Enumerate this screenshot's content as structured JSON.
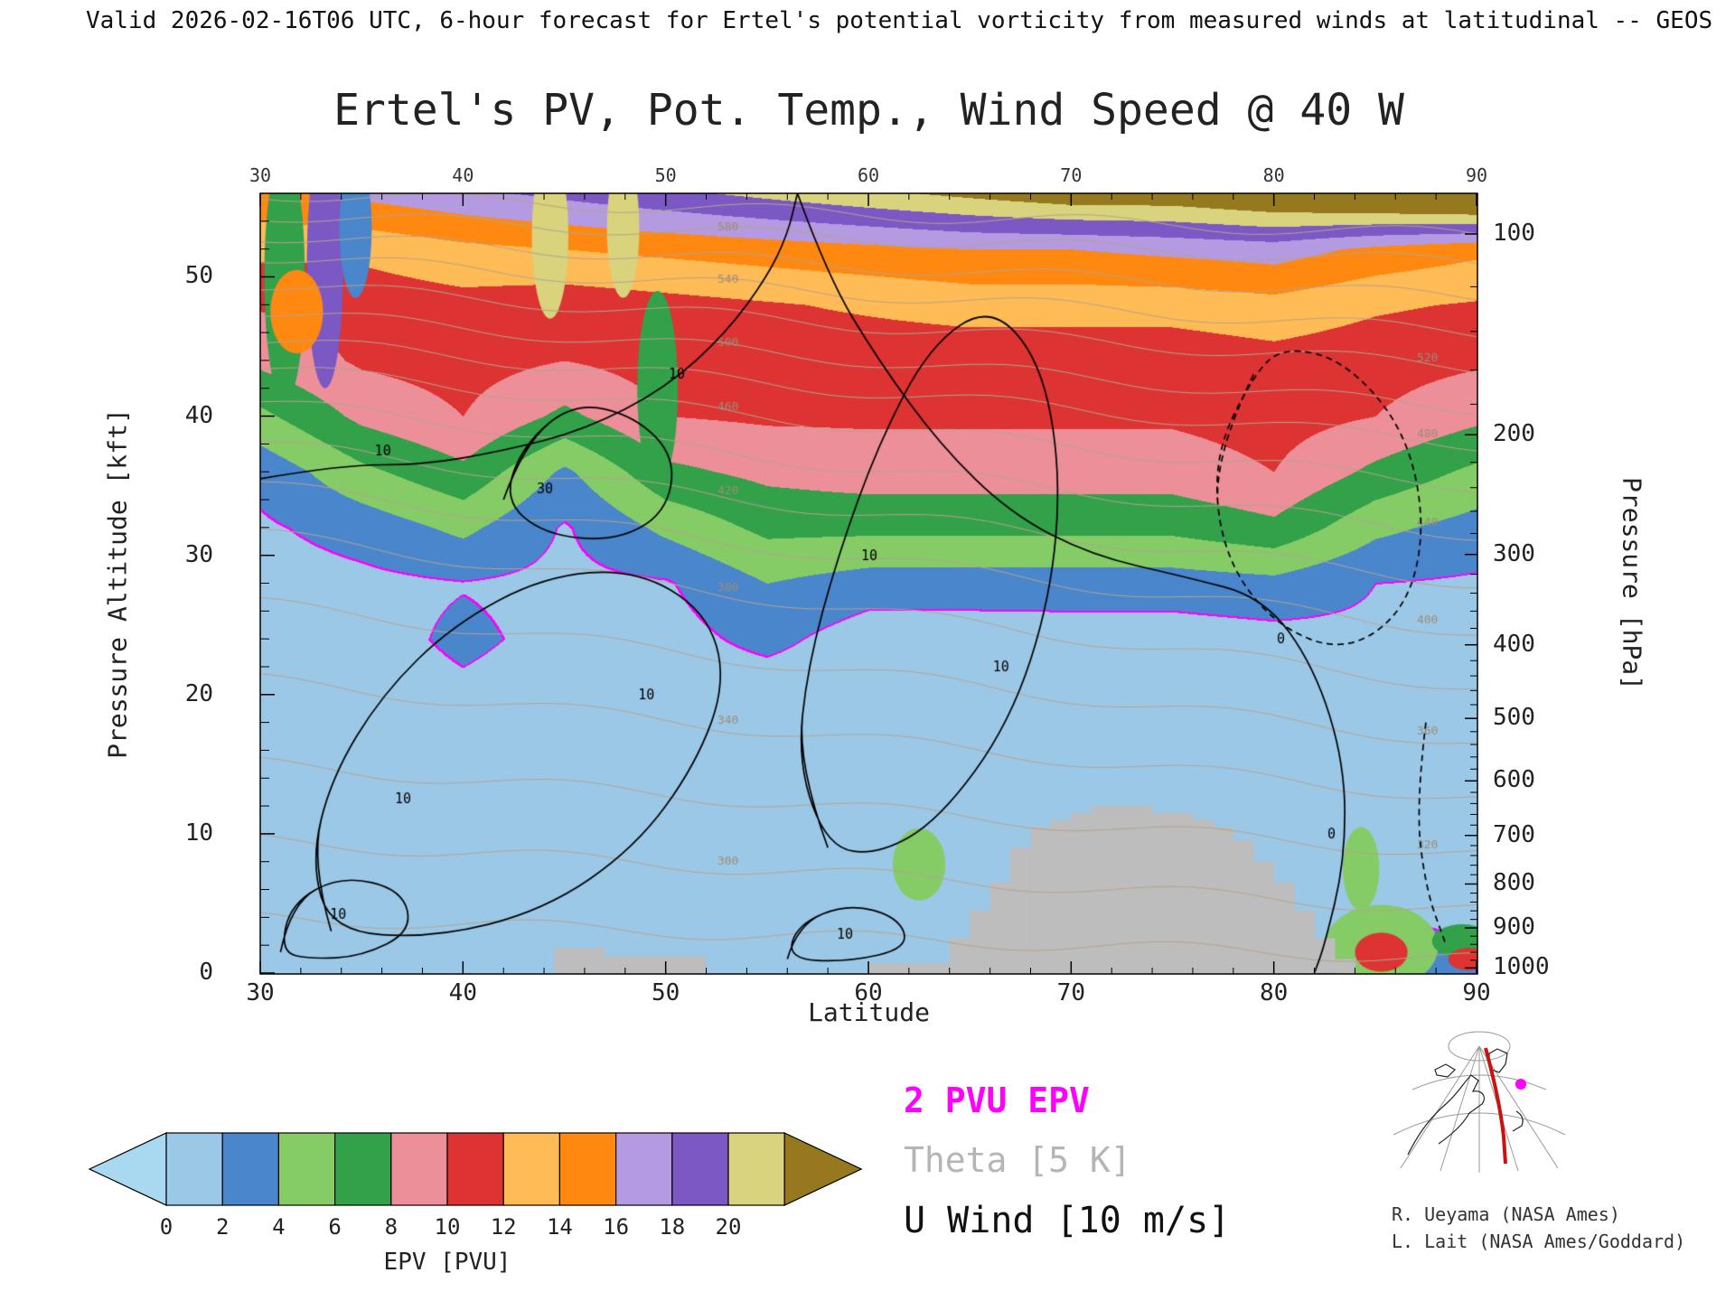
{
  "header": {
    "valid_line": "Valid 2026-02-16T06 UTC, 6-hour forecast for Ertel's potential vorticity from measured winds at latitudinal -- GEOS"
  },
  "title": "Ertel's PV, Pot. Temp., Wind Speed @ 40 W",
  "axes": {
    "x": {
      "label": "Latitude",
      "min": 30,
      "max": 90,
      "major_ticks": [
        30,
        40,
        50,
        60,
        70,
        80,
        90
      ],
      "minor_step": 2
    },
    "y_left": {
      "label": "Pressure Altitude [kft]",
      "min": 0,
      "max": 56,
      "major_ticks": [
        0,
        10,
        20,
        30,
        40,
        50
      ],
      "minor_step": 2
    },
    "y_right": {
      "label": "Pressure [hPa]",
      "ticks": [
        100,
        200,
        300,
        400,
        500,
        600,
        700,
        800,
        900,
        1000
      ],
      "minor_step": 20
    }
  },
  "legend": {
    "epv": "2 PVU EPV",
    "epv_color": "#ff00ff",
    "theta": "Theta [5 K]",
    "theta_color": "#b5b5b5",
    "wind": "U Wind [10 m/s]",
    "wind_color": "#111111"
  },
  "colorbar": {
    "label": "EPV [PVU]",
    "tick_labels": [
      0,
      2,
      4,
      6,
      8,
      10,
      12,
      14,
      16,
      18,
      20
    ],
    "under_color": "#a8d9f0",
    "over_color": "#96781e",
    "segment_colors": [
      "#9cc8e8",
      "#4a86cc",
      "#85cc66",
      "#33a04a",
      "#ec8f98",
      "#dd3333",
      "#ffbb55",
      "#ff8811",
      "#b49ae0",
      "#7b58c4",
      "#d8d37c"
    ]
  },
  "credits": [
    "R. Ueyama (NASA Ames)",
    "L. Lait (NASA Ames/Goddard)"
  ],
  "chart_data": {
    "type": "heatmap",
    "title": "Ertel's PV, Pot. Temp., Wind Speed @ 40 W",
    "xlabel": "Latitude",
    "ylabel_left": "Pressure Altitude [kft]",
    "ylabel_right": "Pressure [hPa]",
    "x_range": [
      30,
      90
    ],
    "y_range_kft": [
      0,
      56
    ],
    "epv_units": "PVU",
    "epv_levels": [
      0,
      2,
      4,
      6,
      8,
      10,
      12,
      14,
      16,
      18,
      20,
      22
    ],
    "epv_lats": [
      30,
      35,
      40,
      45,
      50,
      55,
      60,
      65,
      70,
      75,
      80,
      85,
      90
    ],
    "epv_alts_kft": [
      0,
      4,
      8,
      12,
      16,
      20,
      24,
      28,
      32,
      36,
      40,
      44,
      48,
      52,
      56
    ],
    "epv_grid": [
      [
        0.5,
        0.5,
        0.5,
        0.5,
        0.5,
        0.5,
        0.5,
        0.5,
        0.5,
        0.5,
        0.5,
        4.0,
        2.5
      ],
      [
        0.5,
        0.5,
        0.5,
        0.5,
        0.5,
        0.5,
        0.5,
        0.5,
        0.5,
        0.5,
        0.5,
        2.0,
        1.5
      ],
      [
        0.5,
        0.5,
        0.6,
        0.5,
        0.5,
        0.5,
        0.5,
        0.5,
        0.5,
        0.5,
        0.6,
        1.5,
        0.8
      ],
      [
        0.5,
        0.6,
        0.7,
        0.6,
        0.5,
        0.5,
        0.5,
        0.5,
        0.5,
        0.5,
        0.7,
        0.8,
        0.8
      ],
      [
        0.6,
        0.7,
        0.9,
        0.8,
        0.6,
        0.5,
        0.5,
        0.5,
        0.5,
        0.6,
        0.8,
        0.9,
        0.8
      ],
      [
        0.7,
        1.0,
        1.6,
        1.0,
        0.8,
        0.7,
        0.6,
        0.6,
        0.7,
        0.7,
        0.9,
        1.1,
        1.0
      ],
      [
        0.9,
        1.2,
        2.4,
        1.4,
        1.2,
        2.6,
        0.9,
        0.9,
        1.0,
        1.0,
        1.3,
        1.6,
        1.3
      ],
      [
        1.1,
        1.5,
        1.9,
        1.5,
        1.8,
        4.0,
        3.0,
        3.0,
        3.0,
        3.0,
        3.4,
        2.0,
        1.7
      ],
      [
        1.7,
        2.8,
        4.5,
        1.8,
        4.5,
        6.5,
        6.5,
        6.5,
        6.5,
        6.5,
        7.5,
        4.5,
        3.2
      ],
      [
        2.6,
        5.5,
        7.5,
        3.6,
        7.5,
        8.5,
        9.0,
        9.0,
        9.0,
        9.0,
        10.0,
        7.5,
        5.5
      ],
      [
        5.5,
        8.5,
        10.0,
        7.5,
        10.0,
        10.3,
        10.3,
        10.3,
        10.3,
        10.3,
        10.8,
        10.0,
        8.5
      ],
      [
        8.5,
        10.3,
        10.8,
        10.0,
        10.8,
        10.8,
        10.8,
        10.8,
        10.8,
        10.8,
        11.3,
        10.8,
        10.3
      ],
      [
        10.2,
        10.8,
        11.3,
        10.8,
        11.3,
        11.8,
        12.3,
        12.8,
        12.8,
        12.8,
        13.3,
        12.3,
        11.8
      ],
      [
        12.5,
        12.5,
        13.5,
        14.0,
        14.5,
        15.0,
        15.5,
        16.0,
        16.0,
        16.5,
        17.0,
        15.5,
        14.5
      ],
      [
        15.5,
        16.5,
        17.5,
        18.5,
        19.5,
        20.5,
        21.5,
        22.5,
        23.5,
        23.5,
        24.5,
        25.5,
        26.5
      ]
    ],
    "epv_contour_highlight": {
      "value": 2,
      "color": "#ff00ff"
    },
    "terrain": {
      "color": "#bdbdbd",
      "profile_lat_start": 63,
      "profile_step": 1,
      "profile_heights_kft": [
        0.7,
        2.5,
        4.5,
        6.5,
        9,
        10.5,
        11,
        11.5,
        12,
        12,
        12,
        11.5,
        11.5,
        11,
        10.5,
        9.5,
        8,
        6.5,
        4.5,
        2.5,
        1
      ],
      "strips": [
        [
          44.5,
          47,
          1.8
        ],
        [
          47,
          52,
          1.2
        ],
        [
          60,
          63,
          0.7
        ]
      ]
    },
    "theta_lines_K": [
      {
        "v": 280,
        "z30": 4,
        "z90": 1
      },
      {
        "v": 300,
        "z30": 9.5,
        "z90": 4.5
      },
      {
        "v": 320,
        "z30": 15,
        "z90": 8.5
      },
      {
        "v": 340,
        "z30": 21,
        "z90": 12.5
      },
      {
        "v": 360,
        "z30": 26.5,
        "z90": 16.5
      },
      {
        "v": 380,
        "z30": 31.5,
        "z90": 20.5
      },
      {
        "v": 400,
        "z30": 35,
        "z90": 24.5
      },
      {
        "v": 420,
        "z30": 38,
        "z90": 28
      },
      {
        "v": 440,
        "z30": 41,
        "z90": 31.5
      },
      {
        "v": 460,
        "z30": 43.5,
        "z90": 35
      },
      {
        "v": 480,
        "z30": 45.5,
        "z90": 38
      },
      {
        "v": 500,
        "z30": 47.5,
        "z90": 40.5
      },
      {
        "v": 520,
        "z30": 49.5,
        "z90": 43.5
      },
      {
        "v": 540,
        "z30": 51.5,
        "z90": 46
      },
      {
        "v": 560,
        "z30": 53,
        "z90": 48.5
      },
      {
        "v": 580,
        "z30": 54.5,
        "z90": 51
      },
      {
        "v": 600,
        "z30": 56,
        "z90": 53
      }
    ],
    "theta_color": "#b5a48e",
    "wind_contours_ms": [
      {
        "label": "10",
        "closed": false,
        "dashed": false,
        "pts": [
          [
            30,
            35.5
          ],
          [
            34,
            36.5
          ],
          [
            38,
            36.5
          ],
          [
            42,
            37.5
          ],
          [
            46,
            39
          ],
          [
            50,
            42
          ],
          [
            53,
            46
          ],
          [
            55,
            50
          ],
          [
            56,
            53
          ],
          [
            56.5,
            56
          ]
        ],
        "labels": [
          [
            36,
            37.5
          ],
          [
            50.5,
            43
          ]
        ]
      },
      {
        "label": "30",
        "closed": true,
        "dashed": false,
        "pts": [
          [
            42,
            34
          ],
          [
            43,
            38
          ],
          [
            45.5,
            41
          ],
          [
            48.5,
            40
          ],
          [
            50.5,
            37
          ],
          [
            50,
            33
          ],
          [
            47.5,
            31
          ],
          [
            44,
            31.5
          ]
        ],
        "labels": [
          [
            44,
            34.8
          ]
        ]
      },
      {
        "label": "10",
        "closed": true,
        "dashed": false,
        "pts": [
          [
            33.5,
            3
          ],
          [
            32.5,
            8
          ],
          [
            33.5,
            14
          ],
          [
            36,
            20
          ],
          [
            39.5,
            25
          ],
          [
            44,
            28.5
          ],
          [
            48.5,
            29
          ],
          [
            52,
            26
          ],
          [
            53,
            21
          ],
          [
            51.5,
            15
          ],
          [
            48.5,
            9
          ],
          [
            44,
            4.5
          ],
          [
            38.5,
            2.5
          ]
        ],
        "labels": [
          [
            37,
            12.5
          ],
          [
            49,
            20
          ]
        ]
      },
      {
        "label": "10",
        "closed": true,
        "dashed": false,
        "pts": [
          [
            58,
            9
          ],
          [
            56.5,
            15
          ],
          [
            57,
            22
          ],
          [
            58.5,
            30
          ],
          [
            60.5,
            38
          ],
          [
            63,
            45
          ],
          [
            66,
            48
          ],
          [
            68.5,
            44
          ],
          [
            69.5,
            36
          ],
          [
            69,
            27
          ],
          [
            67,
            18
          ],
          [
            63.5,
            11
          ],
          [
            60.5,
            8.5
          ]
        ],
        "labels": [
          [
            60,
            30
          ],
          [
            66.5,
            22
          ]
        ]
      },
      {
        "label": "0",
        "closed": false,
        "dashed": false,
        "pts": [
          [
            56.5,
            56
          ],
          [
            58,
            50
          ],
          [
            60.5,
            44
          ],
          [
            63.5,
            38
          ],
          [
            67,
            33
          ],
          [
            71,
            30
          ],
          [
            75.5,
            28.5
          ],
          [
            79.5,
            27
          ],
          [
            82,
            22
          ],
          [
            83.5,
            15
          ],
          [
            83.5,
            8
          ],
          [
            82.5,
            2
          ],
          [
            82,
            0
          ]
        ],
        "labels": [
          [
            80.5,
            24
          ],
          [
            83,
            10
          ]
        ]
      },
      {
        "label": "",
        "closed": true,
        "dashed": true,
        "pts": [
          [
            79,
            43
          ],
          [
            77,
            37
          ],
          [
            77.5,
            30
          ],
          [
            80,
            25
          ],
          [
            83.5,
            23
          ],
          [
            86.5,
            26
          ],
          [
            87.5,
            32
          ],
          [
            86.5,
            39
          ],
          [
            83.5,
            44
          ],
          [
            80.5,
            45
          ]
        ],
        "labels": []
      },
      {
        "label": "10",
        "closed": true,
        "dashed": false,
        "pts": [
          [
            31,
            1.5
          ],
          [
            31.5,
            5
          ],
          [
            34,
            7
          ],
          [
            37,
            6
          ],
          [
            37.5,
            3
          ],
          [
            35,
            1.2
          ],
          [
            32.5,
            1
          ]
        ],
        "labels": [
          [
            33.8,
            4.2
          ]
        ]
      },
      {
        "label": "10",
        "closed": true,
        "dashed": false,
        "pts": [
          [
            56,
            1
          ],
          [
            56.5,
            3.5
          ],
          [
            59,
            5
          ],
          [
            61.5,
            4
          ],
          [
            62,
            1.8
          ],
          [
            59,
            0.8
          ]
        ],
        "labels": [
          [
            58.8,
            2.8
          ]
        ]
      },
      {
        "label": "",
        "closed": false,
        "dashed": true,
        "pts": [
          [
            87.5,
            18
          ],
          [
            87,
            12
          ],
          [
            87.5,
            6
          ],
          [
            88.5,
            2
          ]
        ],
        "labels": []
      }
    ],
    "anomalies": [
      {
        "lat": 31.2,
        "alt": 50,
        "rlat": 1.0,
        "rkft": 9,
        "color": "#33a04a"
      },
      {
        "lat": 33.2,
        "alt": 51,
        "rlat": 0.9,
        "rkft": 9,
        "color": "#7b58c4"
      },
      {
        "lat": 34.7,
        "alt": 53.5,
        "rlat": 0.8,
        "rkft": 5,
        "color": "#4a86cc"
      },
      {
        "lat": 31.8,
        "alt": 47.5,
        "rlat": 1.3,
        "rkft": 3,
        "color": "#ff8811"
      },
      {
        "lat": 44.3,
        "alt": 53,
        "rlat": 0.9,
        "rkft": 6,
        "color": "#d8d37c"
      },
      {
        "lat": 47.9,
        "alt": 53.5,
        "rlat": 0.8,
        "rkft": 5,
        "color": "#d8d37c"
      },
      {
        "lat": 49.6,
        "alt": 42,
        "rlat": 1.0,
        "rkft": 7,
        "color": "#33a04a"
      },
      {
        "lat": 62.5,
        "alt": 7.8,
        "rlat": 1.3,
        "rkft": 2.6,
        "color": "#85cc66"
      },
      {
        "lat": 84.3,
        "alt": 7.5,
        "rlat": 0.9,
        "rkft": 3,
        "color": "#85cc66"
      },
      {
        "lat": 85.3,
        "alt": 1.9,
        "rlat": 2.8,
        "rkft": 3.0,
        "color": "#85cc66"
      },
      {
        "lat": 85.3,
        "alt": 1.5,
        "rlat": 1.3,
        "rkft": 1.4,
        "color": "#dd3333"
      },
      {
        "lat": 89.3,
        "alt": 2.3,
        "rlat": 1.5,
        "rkft": 1.2,
        "color": "#33a04a"
      },
      {
        "lat": 89.6,
        "alt": 1.0,
        "rlat": 1.0,
        "rkft": 0.8,
        "color": "#dd3333"
      }
    ]
  }
}
